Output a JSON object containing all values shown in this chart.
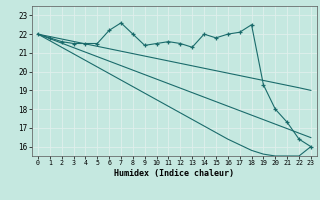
{
  "xlabel": "Humidex (Indice chaleur)",
  "bg_color": "#c5e8e0",
  "line_color": "#1a6b6b",
  "grid_color": "#e0f0ec",
  "xlim": [
    -0.5,
    23.5
  ],
  "ylim": [
    15.5,
    23.5
  ],
  "yticks": [
    16,
    17,
    18,
    19,
    20,
    21,
    22,
    23
  ],
  "xticks": [
    0,
    1,
    2,
    3,
    4,
    5,
    6,
    7,
    8,
    9,
    10,
    11,
    12,
    13,
    14,
    15,
    16,
    17,
    18,
    19,
    20,
    21,
    22,
    23
  ],
  "series_main": [
    22.0,
    21.8,
    21.6,
    21.5,
    21.5,
    21.5,
    22.2,
    22.6,
    22.0,
    21.4,
    21.5,
    21.6,
    21.5,
    21.3,
    22.0,
    21.8,
    22.0,
    22.1,
    22.5,
    19.3,
    18.0,
    17.3,
    16.4,
    16.0
  ],
  "series_line1": [
    22.0,
    21.87,
    21.74,
    21.61,
    21.48,
    21.35,
    21.22,
    21.09,
    20.96,
    20.83,
    20.7,
    20.57,
    20.44,
    20.31,
    20.18,
    20.05,
    19.92,
    19.79,
    19.66,
    19.53,
    19.4,
    19.27,
    19.14,
    19.0
  ],
  "series_line2": [
    22.0,
    21.76,
    21.52,
    21.28,
    21.04,
    20.8,
    20.56,
    20.32,
    20.08,
    19.84,
    19.6,
    19.36,
    19.12,
    18.88,
    18.64,
    18.4,
    18.16,
    17.92,
    17.68,
    17.44,
    17.2,
    16.96,
    16.72,
    16.48
  ],
  "series_line3": [
    22.0,
    21.65,
    21.3,
    20.95,
    20.6,
    20.25,
    19.9,
    19.55,
    19.2,
    18.85,
    18.5,
    18.15,
    17.8,
    17.45,
    17.1,
    16.75,
    16.4,
    16.1,
    15.8,
    15.6,
    15.5,
    15.5,
    15.5,
    16.0
  ]
}
